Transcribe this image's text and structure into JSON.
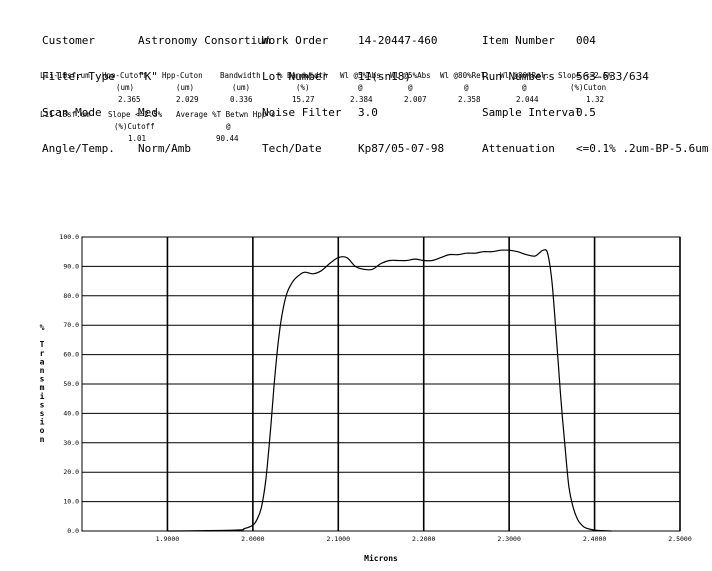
{
  "header": {
    "left": [
      {
        "label": "Customer",
        "value": "Astronomy Consortium"
      },
      {
        "label": "Filter Type",
        "value": "\"K\""
      },
      {
        "label": "Scan Mode",
        "value": "Med"
      },
      {
        "label": "Angle/Temp.",
        "value": "Norm/Amb"
      }
    ],
    "middle": [
      {
        "label": "Work Order",
        "value": "14-20447-460"
      },
      {
        "label": "Lot Number",
        "value": "11(sn18)"
      },
      {
        "label": "Noise Filter",
        "value": "3.0"
      },
      {
        "label": "Tech/Date",
        "value": "Kp87/05-07-98"
      }
    ],
    "right": [
      {
        "label": "Item Number",
        "value": "004"
      },
      {
        "label": "Run Numbers",
        "value": "563-633/634"
      },
      {
        "label": "Sample Interval",
        "value": "0.5"
      },
      {
        "label": "Attenuation",
        "value": "<=0.1% .2um-BP-5.6um"
      }
    ]
  },
  "table1": {
    "file": "L11-18sf.um",
    "headers": [
      "Hpp-Cutoff",
      "Hpp-Cuton",
      "Bandwidth",
      "% Bandwidth",
      "Wl @5%Abs",
      "Wl @5%Abs",
      "Wl @80%Rel.",
      "Wl @80%Rel.",
      "Slope <=2.5%"
    ],
    "units": [
      "(um)",
      "(um)",
      "(um)",
      "(%)",
      "@",
      "@",
      "@",
      "@",
      "(%)Cuton"
    ],
    "values": [
      "2.365",
      "2.029",
      "0.336",
      "15.27",
      "2.384",
      "2.007",
      "2.358",
      "2.044",
      "1.32"
    ]
  },
  "table2": {
    "file": "L11-18sf.um",
    "headers": [
      "Slope <=2.5%",
      "Average %T Betwn Hpp's"
    ],
    "units": [
      "(%)Cutoff",
      "@"
    ],
    "values": [
      "1.01",
      "90.44"
    ]
  },
  "chart_data": {
    "type": "line",
    "xlabel": "Microns",
    "ylabel": "% Transmission",
    "xlim": [
      1.8,
      2.5
    ],
    "ylim": [
      0,
      100
    ],
    "xticks": [
      "1.9000",
      "2.0000",
      "2.1000",
      "2.2000",
      "2.3000",
      "2.4000",
      "2.5000"
    ],
    "yticks": [
      "0.0",
      "10.0",
      "20.0",
      "30.0",
      "40.0",
      "50.0",
      "60.0",
      "70.0",
      "80.0",
      "90.0",
      "100.0"
    ],
    "grid": true,
    "series": [
      {
        "x": [
          1.9,
          1.98,
          1.99,
          2.0,
          2.005,
          2.01,
          2.015,
          2.02,
          2.025,
          2.03,
          2.035,
          2.04,
          2.045,
          2.05,
          2.06,
          2.07,
          2.08,
          2.09,
          2.1,
          2.11,
          2.12,
          2.13,
          2.14,
          2.15,
          2.16,
          2.17,
          2.18,
          2.19,
          2.2,
          2.21,
          2.22,
          2.23,
          2.24,
          2.25,
          2.26,
          2.27,
          2.28,
          2.29,
          2.3,
          2.31,
          2.32,
          2.33,
          2.335,
          2.34,
          2.345,
          2.35,
          2.355,
          2.36,
          2.365,
          2.37,
          2.375,
          2.38,
          2.385,
          2.39,
          2.4,
          2.42
        ],
        "y": [
          0,
          0.3,
          0.8,
          2,
          4,
          8,
          17,
          32,
          50,
          65,
          75,
          81,
          84,
          86,
          88,
          87.5,
          88.5,
          91,
          93,
          93,
          90,
          89,
          89,
          91,
          92,
          92,
          92,
          92.5,
          92,
          92,
          93,
          94,
          94,
          94.5,
          94.5,
          95,
          95,
          95.5,
          95.5,
          95,
          94,
          93.5,
          94.5,
          95.5,
          94.5,
          85,
          67,
          47,
          30,
          15,
          8,
          4,
          2,
          1,
          0.3,
          0
        ]
      }
    ]
  }
}
